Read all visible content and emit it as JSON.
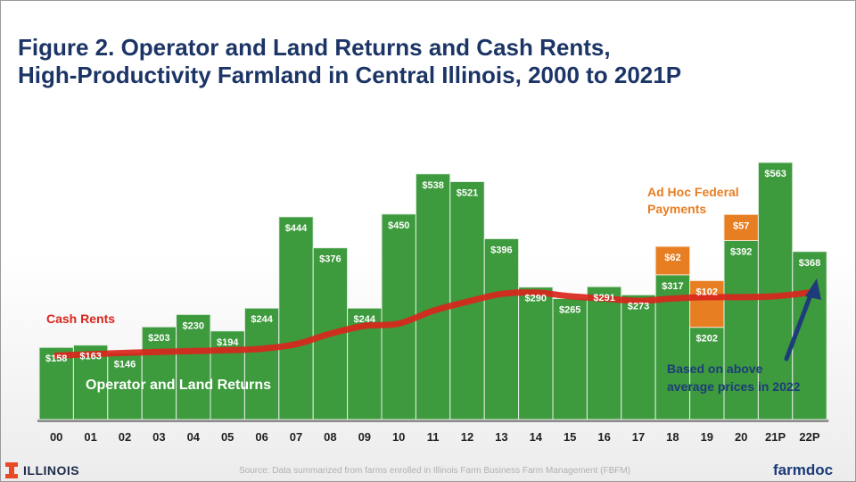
{
  "title": {
    "line1": "Figure 2. Operator and Land Returns and Cash Rents,",
    "line2": "High-Productivity Farmland in Central Illinois, 2000 to 2021P"
  },
  "footer": {
    "logo": "ILLINOIS",
    "source": "Source:  Data summarized from farms enrolled in Illinois Farm Business Farm Management (FBFM)",
    "brand": "farmdoc"
  },
  "colors": {
    "returns": "#3d9a3d",
    "adhoc": "#e87e22",
    "cash_rent_line": "#d9261c",
    "arrow": "#1e3c7a",
    "title": "#1c3566"
  },
  "chart_data": {
    "type": "bar",
    "categories": [
      "00",
      "01",
      "02",
      "03",
      "04",
      "05",
      "06",
      "07",
      "08",
      "09",
      "10",
      "11",
      "12",
      "13",
      "14",
      "15",
      "16",
      "17",
      "18",
      "19",
      "20",
      "21P",
      "22P"
    ],
    "series": [
      {
        "name": "Operator and Land Returns",
        "values": [
          158,
          163,
          146,
          203,
          230,
          194,
          244,
          444,
          376,
          244,
          450,
          538,
          521,
          396,
          290,
          265,
          291,
          273,
          317,
          202,
          392,
          563,
          368
        ],
        "labels": [
          "$158",
          "$163",
          "$146",
          "$203",
          "$230",
          "$194",
          "$244",
          "$444",
          "$376",
          "$244",
          "$450",
          "$538",
          "$521",
          "$396",
          "$290",
          "$265",
          "$291",
          "$273",
          "$317",
          "$202",
          "$392",
          "$563",
          "$368"
        ]
      },
      {
        "name": "Ad Hoc Federal Payments",
        "values": [
          null,
          null,
          null,
          null,
          null,
          null,
          null,
          null,
          null,
          null,
          null,
          null,
          null,
          null,
          null,
          null,
          null,
          null,
          62,
          102,
          57,
          null,
          null
        ],
        "labels": [
          null,
          null,
          null,
          null,
          null,
          null,
          null,
          null,
          null,
          null,
          null,
          null,
          null,
          null,
          null,
          null,
          null,
          null,
          "$62",
          "$102",
          "$57",
          null,
          null
        ]
      },
      {
        "name": "Cash Rents",
        "values": [
          140,
          143,
          146,
          148,
          150,
          152,
          155,
          165,
          188,
          205,
          210,
          238,
          258,
          275,
          278,
          270,
          265,
          260,
          265,
          268,
          268,
          270,
          278
        ]
      }
    ],
    "annotations": {
      "cash_rents": "Cash Rents",
      "returns": "Operator and Land Returns",
      "adhoc_line1": "Ad Hoc Federal",
      "adhoc_line2": "Payments",
      "projection_line1": "Based on above",
      "projection_line2": "average prices in 2022"
    },
    "ylim": [
      0,
      620
    ],
    "grid": false,
    "legend": "none"
  }
}
